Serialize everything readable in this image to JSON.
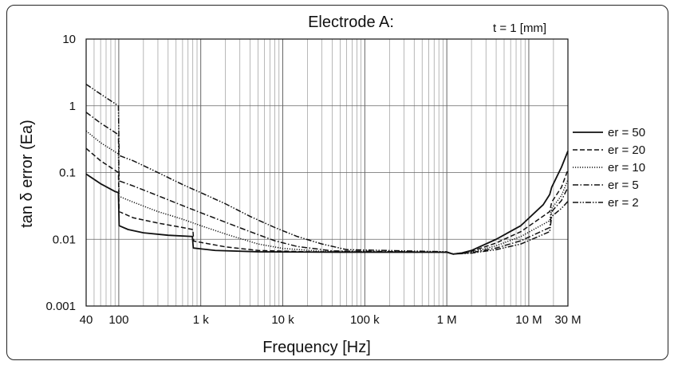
{
  "chart_data": {
    "type": "line",
    "title": "Electrode A:",
    "annotation": "t = 1 [mm]",
    "xlabel": "Frequency [Hz]",
    "ylabel": "tan δ error (Ea)",
    "x_scale": "log",
    "y_scale": "log",
    "xlim": [
      40,
      30000000
    ],
    "ylim": [
      0.001,
      10
    ],
    "x_ticks": [
      {
        "value": 40,
        "label": "40"
      },
      {
        "value": 100,
        "label": "100"
      },
      {
        "value": 1000,
        "label": "1 k"
      },
      {
        "value": 10000,
        "label": "10 k"
      },
      {
        "value": 100000,
        "label": "100 k"
      },
      {
        "value": 1000000,
        "label": "1 M"
      },
      {
        "value": 10000000,
        "label": "10 M"
      },
      {
        "value": 30000000,
        "label": "30 M"
      }
    ],
    "y_ticks": [
      {
        "value": 10,
        "label": "10"
      },
      {
        "value": 1,
        "label": "1"
      },
      {
        "value": 0.1,
        "label": "0.1"
      },
      {
        "value": 0.01,
        "label": "0.01"
      },
      {
        "value": 0.001,
        "label": "0.001"
      }
    ],
    "grid": true,
    "legend_position": "right",
    "series": [
      {
        "name": "er = 50",
        "dash": "solid",
        "points": [
          [
            40,
            0.095
          ],
          [
            60,
            0.068
          ],
          [
            90,
            0.052
          ],
          [
            99,
            0.05
          ],
          [
            101,
            0.016
          ],
          [
            130,
            0.014
          ],
          [
            200,
            0.0125
          ],
          [
            400,
            0.0115
          ],
          [
            790,
            0.011
          ],
          [
            810,
            0.0074
          ],
          [
            1500,
            0.0068
          ],
          [
            5000,
            0.0065
          ],
          [
            50000,
            0.0064
          ],
          [
            1000000,
            0.0064
          ],
          [
            1200000,
            0.006
          ],
          [
            1500000,
            0.0062
          ],
          [
            2000000,
            0.0068
          ],
          [
            4000000,
            0.01
          ],
          [
            8000000,
            0.016
          ],
          [
            15000000,
            0.033
          ],
          [
            18000000,
            0.047
          ],
          [
            19000000,
            0.06
          ],
          [
            25000000,
            0.12
          ],
          [
            30000000,
            0.21
          ]
        ]
      },
      {
        "name": "er = 20",
        "dash": "dashed",
        "points": [
          [
            40,
            0.23
          ],
          [
            60,
            0.15
          ],
          [
            99,
            0.1
          ],
          [
            101,
            0.026
          ],
          [
            150,
            0.021
          ],
          [
            300,
            0.0175
          ],
          [
            600,
            0.015
          ],
          [
            800,
            0.014
          ],
          [
            820,
            0.0094
          ],
          [
            2000,
            0.0077
          ],
          [
            5000,
            0.0068
          ],
          [
            20000,
            0.0065
          ],
          [
            1000000,
            0.0064
          ],
          [
            1200000,
            0.006
          ],
          [
            2000000,
            0.0066
          ],
          [
            4000000,
            0.0088
          ],
          [
            8000000,
            0.013
          ],
          [
            18000000,
            0.026
          ],
          [
            19000000,
            0.036
          ],
          [
            25000000,
            0.06
          ],
          [
            30000000,
            0.11
          ]
        ]
      },
      {
        "name": "er = 10",
        "dash": "dotted",
        "points": [
          [
            40,
            0.42
          ],
          [
            60,
            0.28
          ],
          [
            99,
            0.19
          ],
          [
            101,
            0.044
          ],
          [
            150,
            0.036
          ],
          [
            300,
            0.026
          ],
          [
            600,
            0.02
          ],
          [
            1000,
            0.016
          ],
          [
            2000,
            0.012
          ],
          [
            5000,
            0.0085
          ],
          [
            10000,
            0.0073
          ],
          [
            30000,
            0.0066
          ],
          [
            1000000,
            0.0064
          ],
          [
            1200000,
            0.006
          ],
          [
            2000000,
            0.0064
          ],
          [
            4000000,
            0.008
          ],
          [
            8000000,
            0.011
          ],
          [
            18000000,
            0.019
          ],
          [
            19000000,
            0.029
          ],
          [
            25000000,
            0.045
          ],
          [
            30000000,
            0.078
          ]
        ]
      },
      {
        "name": "er = 5",
        "dash": "dashdot",
        "points": [
          [
            40,
            0.8
          ],
          [
            60,
            0.55
          ],
          [
            99,
            0.37
          ],
          [
            101,
            0.075
          ],
          [
            150,
            0.063
          ],
          [
            300,
            0.045
          ],
          [
            600,
            0.032
          ],
          [
            1000,
            0.025
          ],
          [
            2000,
            0.018
          ],
          [
            4000,
            0.013
          ],
          [
            8000,
            0.0095
          ],
          [
            15000,
            0.0078
          ],
          [
            40000,
            0.0067
          ],
          [
            1000000,
            0.0064
          ],
          [
            1200000,
            0.006
          ],
          [
            2000000,
            0.0063
          ],
          [
            4000000,
            0.0074
          ],
          [
            8000000,
            0.0095
          ],
          [
            18000000,
            0.015
          ],
          [
            19000000,
            0.026
          ],
          [
            25000000,
            0.038
          ],
          [
            30000000,
            0.06
          ]
        ]
      },
      {
        "name": "er = 2",
        "dash": "dashdotdot",
        "points": [
          [
            40,
            2.1
          ],
          [
            60,
            1.5
          ],
          [
            99,
            1.0
          ],
          [
            101,
            0.18
          ],
          [
            150,
            0.15
          ],
          [
            300,
            0.1
          ],
          [
            600,
            0.066
          ],
          [
            1000,
            0.05
          ],
          [
            2000,
            0.034
          ],
          [
            4000,
            0.022
          ],
          [
            8000,
            0.015
          ],
          [
            15000,
            0.011
          ],
          [
            30000,
            0.0085
          ],
          [
            60000,
            0.007
          ],
          [
            1000000,
            0.0065
          ],
          [
            1200000,
            0.006
          ],
          [
            2000000,
            0.0062
          ],
          [
            4000000,
            0.007
          ],
          [
            8000000,
            0.0085
          ],
          [
            18000000,
            0.013
          ],
          [
            19000000,
            0.022
          ],
          [
            25000000,
            0.029
          ],
          [
            30000000,
            0.037
          ]
        ]
      }
    ]
  }
}
